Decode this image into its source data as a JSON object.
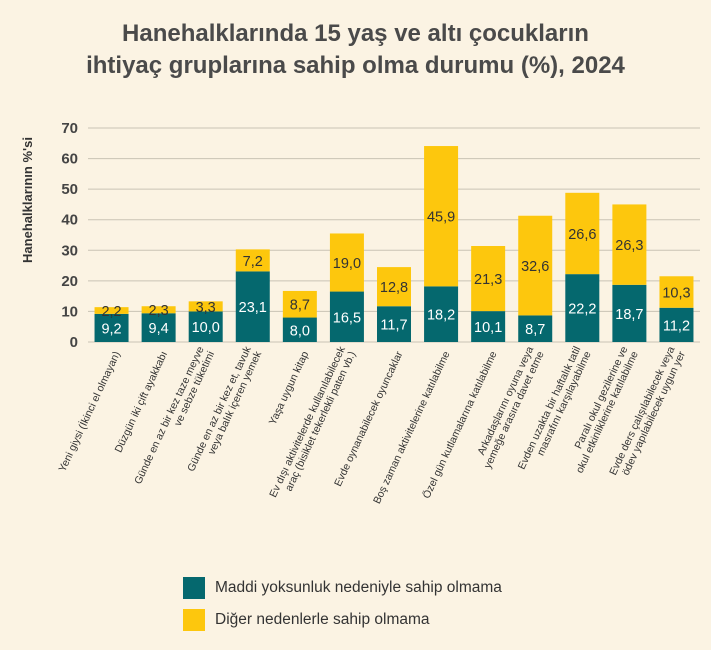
{
  "chart_data": {
    "type": "bar",
    "stacked": true,
    "title": [
      "Hanehalklarında 15 yaş ve altı çocukların",
      "ihtiyaç gruplarına sahip olma durumu (%), 2024"
    ],
    "ylabel": "Hanehalklarının %'si",
    "ylim": [
      0,
      70
    ],
    "yticks": [
      "0",
      "10",
      "20",
      "30",
      "40",
      "50",
      "60",
      "70"
    ],
    "ytick_values": [
      0,
      10,
      20,
      30,
      40,
      50,
      60,
      70
    ],
    "grid": true,
    "legend_placement": "bottom",
    "categories": [
      [
        "Yeni giysi (İkinci el olmayan)"
      ],
      [
        "Düzgün iki çift ayakkabı"
      ],
      [
        "Günde en az bir kez taze meyve",
        "ve sebze tüketimi"
      ],
      [
        "Günde en az bir kez et, tavuk",
        "veya balık içeren yemek"
      ],
      [
        "Yaşa uygun kitap"
      ],
      [
        "Ev dışı aktivitelerde kullanılabilecek",
        "araç (bisiklet tekerlekli paten vb.)"
      ],
      [
        "Evde oynanabilecek oyuncaklar"
      ],
      [
        "Boş zaman aktivitelerine katılabilme"
      ],
      [
        "Özel gün kutlamalarına katılabilme"
      ],
      [
        "Arkadaşlarını oyuna veya",
        "yemeğe arasıra davet etme"
      ],
      [
        "Evden uzakta bir haftalık tatil",
        "masrafını karşılayabilme"
      ],
      [
        "Paralı okul gezilerine ve",
        "okul etkinliklerine katılabilme"
      ],
      [
        "Evde ders çalışılabilecek veya",
        "ödev yapılabilecek uygun yer"
      ]
    ],
    "series": [
      {
        "name": "Maddi yoksunluk nedeniyle sahip olmama",
        "color": "#05686e",
        "values": [
          9.2,
          9.4,
          10.0,
          23.1,
          8.0,
          16.5,
          11.7,
          18.2,
          10.1,
          8.7,
          22.2,
          18.7,
          11.2
        ],
        "labels": [
          "9,2",
          "9,4",
          "10,0",
          "23,1",
          "8,0",
          "16,5",
          "11,7",
          "18,2",
          "10,1",
          "8,7",
          "22,2",
          "18,7",
          "11,2"
        ]
      },
      {
        "name": "Diğer nedenlerle sahip olmama",
        "color": "#fdc70d",
        "values": [
          2.2,
          2.3,
          3.3,
          7.2,
          8.7,
          19.0,
          12.8,
          45.9,
          21.3,
          32.6,
          26.6,
          26.3,
          10.3
        ],
        "labels": [
          "2,2",
          "2,3",
          "3,3",
          "7,2",
          "8,7",
          "19,0",
          "12,8",
          "45,9",
          "21,3",
          "32,6",
          "26,6",
          "26,3",
          "10,3"
        ]
      }
    ]
  }
}
